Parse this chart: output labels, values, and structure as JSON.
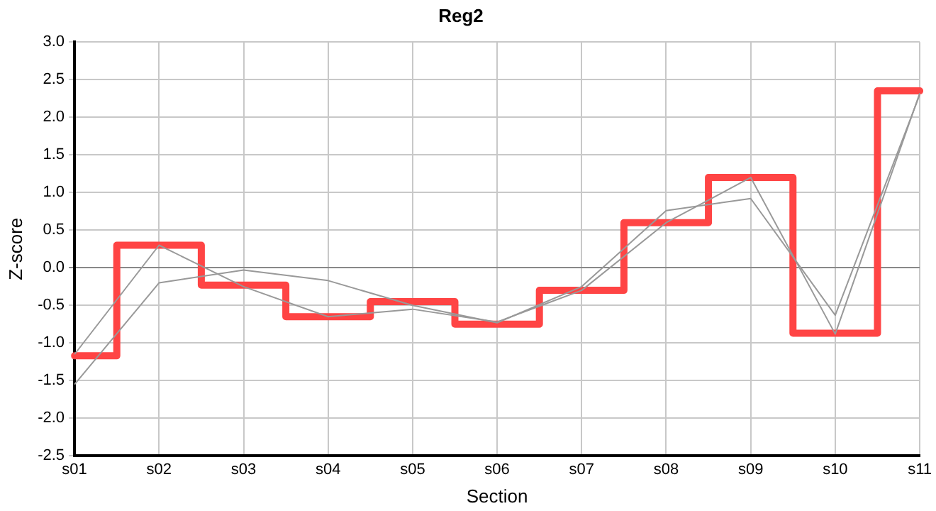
{
  "chart_data": {
    "type": "line",
    "title": "Reg2",
    "xlabel": "Section",
    "ylabel": "Z-score",
    "categories": [
      "s01",
      "s02",
      "s03",
      "s04",
      "s05",
      "s06",
      "s07",
      "s08",
      "s09",
      "s10",
      "s11"
    ],
    "series": [
      {
        "type": "line",
        "color": "#999999",
        "values": [
          -1.15,
          0.3,
          -0.25,
          -0.65,
          -0.55,
          -0.72,
          -0.3,
          0.6,
          1.2,
          -0.88,
          2.32
        ]
      },
      {
        "type": "line",
        "color": "#999999",
        "values": [
          -1.55,
          -0.2,
          -0.03,
          -0.17,
          -0.5,
          -0.73,
          -0.25,
          0.76,
          0.92,
          -0.63,
          2.3
        ]
      },
      {
        "type": "step",
        "color": "#ff4444",
        "values": [
          -1.17,
          0.3,
          -0.23,
          -0.65,
          -0.45,
          -0.75,
          -0.3,
          0.6,
          1.2,
          -0.87,
          2.35
        ]
      }
    ],
    "ylim": [
      -2.5,
      3.0
    ],
    "yticks": [
      {
        "value": -2.5,
        "label": "-2.5"
      },
      {
        "value": -2,
        "label": "-2.0"
      },
      {
        "value": -1.5,
        "label": "-1.5"
      },
      {
        "value": -1,
        "label": "-1.0"
      },
      {
        "value": -0.5,
        "label": "-0.5"
      },
      {
        "value": 0,
        "label": "0.0"
      },
      {
        "value": 0.5,
        "label": "0.5"
      },
      {
        "value": 1,
        "label": "1.0"
      },
      {
        "value": 1.5,
        "label": "1.5"
      },
      {
        "value": 2,
        "label": "2.0"
      },
      {
        "value": 2.5,
        "label": "2.5"
      },
      {
        "value": 3,
        "label": "3.0"
      }
    ],
    "grid": true,
    "legend": false,
    "marker": "none",
    "line_style": "solid"
  }
}
